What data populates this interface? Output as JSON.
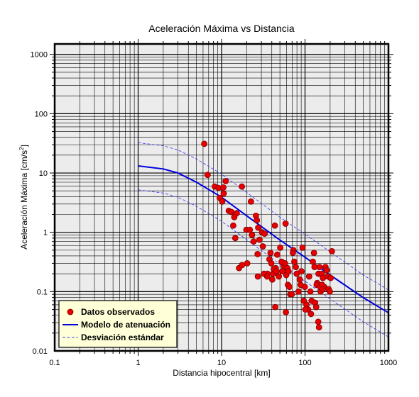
{
  "chart_data": {
    "type": "scatter",
    "title": "Aceleración Máxima vs Distancia",
    "xlabel": "Distancia hipocentral [km]",
    "ylabel": "Aceleración Máxima [cm/s",
    "ylabel_sup": "2",
    "ylabel_suffix": "]",
    "xscale": "log",
    "yscale": "log",
    "xlim": [
      0.1,
      1000
    ],
    "ylim": [
      0.01,
      1500
    ],
    "x_ticks": [
      0.1,
      1,
      10,
      100,
      1000
    ],
    "x_tick_labels": [
      "0.1",
      "1",
      "10",
      "100",
      "1000"
    ],
    "y_ticks": [
      0.01,
      0.1,
      1,
      10,
      100,
      1000
    ],
    "y_tick_labels": [
      "0.01",
      "0.1",
      "1",
      "10",
      "100",
      "1000"
    ],
    "grid": true,
    "legend_position": "bottom-left",
    "colors": {
      "points": "#e80000",
      "model": "#0000dd",
      "std": "#4444ee",
      "legend_bg": "#ffffd8",
      "plot_bg": "#ececec"
    },
    "series": [
      {
        "name": "Datos observados",
        "kind": "points",
        "points": [
          [
            6.2,
            31
          ],
          [
            6.8,
            9.3
          ],
          [
            8.3,
            5.9
          ],
          [
            9.2,
            5.6
          ],
          [
            10.5,
            5.7
          ],
          [
            11.2,
            7.3
          ],
          [
            9.5,
            3.8
          ],
          [
            10.2,
            3.3
          ],
          [
            10.6,
            4.5
          ],
          [
            12.2,
            2.3
          ],
          [
            13.1,
            2.2
          ],
          [
            14.5,
            2.0
          ],
          [
            15.2,
            2.1
          ],
          [
            14.2,
            1.8
          ],
          [
            13.8,
            1.3
          ],
          [
            14.6,
            0.8
          ],
          [
            17.5,
            5.9
          ],
          [
            22.5,
            3.3
          ],
          [
            19.8,
            1.1
          ],
          [
            21.8,
            1.1
          ],
          [
            23.2,
            0.9
          ],
          [
            25.8,
            1.9
          ],
          [
            26.5,
            1.6
          ],
          [
            27.5,
            1.2
          ],
          [
            24.2,
            0.7
          ],
          [
            28.5,
            0.75
          ],
          [
            30.5,
            1.0
          ],
          [
            31.2,
            0.58
          ],
          [
            32.8,
            0.95
          ],
          [
            35.5,
            0.2
          ],
          [
            37.5,
            0.35
          ],
          [
            39.5,
            0.3
          ],
          [
            40.5,
            0.16
          ],
          [
            41.5,
            0.2
          ],
          [
            43.5,
            1.3
          ],
          [
            44.5,
            0.25
          ],
          [
            46.5,
            0.42
          ],
          [
            48.5,
            0.18
          ],
          [
            50.5,
            0.55
          ],
          [
            52.5,
            0.32
          ],
          [
            53.5,
            0.22
          ],
          [
            55.5,
            0.27
          ],
          [
            57.5,
            0.3
          ],
          [
            58.5,
            1.4
          ],
          [
            59.5,
            0.19
          ],
          [
            61.5,
            0.25
          ],
          [
            63.5,
            0.22
          ],
          [
            66.5,
            0.09
          ],
          [
            69.5,
            0.09
          ],
          [
            72.5,
            0.5
          ],
          [
            74.5,
            0.32
          ],
          [
            77.5,
            0.26
          ],
          [
            79.5,
            0.2
          ],
          [
            83.5,
            0.1
          ],
          [
            86.5,
            0.16
          ],
          [
            90.5,
            0.22
          ],
          [
            93.5,
            0.55
          ],
          [
            96.5,
            0.07
          ],
          [
            99.5,
            0.12
          ],
          [
            104,
            0.06
          ],
          [
            109,
            0.05
          ],
          [
            112,
            0.18
          ],
          [
            116,
            0.1
          ],
          [
            120,
            0.07
          ],
          [
            124,
            0.32
          ],
          [
            128,
            0.45
          ],
          [
            132,
            0.065
          ],
          [
            136,
            0.055
          ],
          [
            140,
            0.14
          ],
          [
            145,
            0.2
          ],
          [
            149,
            0.26
          ],
          [
            154,
            0.1
          ],
          [
            159,
            0.2
          ],
          [
            164,
            0.17
          ],
          [
            170,
            0.12
          ],
          [
            176,
            0.26
          ],
          [
            182,
            0.23
          ],
          [
            188,
            0.18
          ],
          [
            192,
            0.11
          ],
          [
            198,
            0.1
          ],
          [
            203,
            0.17
          ],
          [
            210,
            0.48
          ],
          [
            144,
            0.031
          ],
          [
            147,
            0.025
          ],
          [
            59,
            0.045
          ],
          [
            44,
            0.055
          ],
          [
            16.2,
            0.25
          ],
          [
            17.6,
            0.28
          ],
          [
            20.3,
            0.3
          ],
          [
            27.2,
            0.18
          ],
          [
            32.2,
            0.2
          ],
          [
            35.2,
            0.18
          ],
          [
            38.6,
            0.45
          ],
          [
            42.2,
            0.24
          ],
          [
            45.5,
            0.22
          ],
          [
            62.4,
            0.13
          ],
          [
            65.1,
            0.12
          ],
          [
            71.5,
            0.45
          ],
          [
            88.5,
            0.13
          ],
          [
            101,
            0.05
          ],
          [
            118,
            0.042
          ],
          [
            130,
            0.26
          ],
          [
            138,
            0.13
          ],
          [
            152,
            0.12
          ],
          [
            160,
            0.13
          ],
          [
            163,
            0.11
          ],
          [
            27,
            0.43
          ]
        ]
      },
      {
        "name": "Modelo de atenuación",
        "kind": "line",
        "points": [
          [
            1,
            13.2
          ],
          [
            2,
            11.7
          ],
          [
            3,
            10
          ],
          [
            5,
            7
          ],
          [
            10,
            3.9
          ],
          [
            20,
            1.9
          ],
          [
            50,
            0.74
          ],
          [
            100,
            0.38
          ],
          [
            200,
            0.19
          ],
          [
            500,
            0.079
          ],
          [
            1000,
            0.044
          ]
        ]
      },
      {
        "name": "Desviación estándar",
        "kind": "dashed",
        "points": [
          [
            1,
            32.5
          ],
          [
            2,
            28.7
          ],
          [
            3,
            24.5
          ],
          [
            5,
            17.2
          ],
          [
            10,
            9.6
          ],
          [
            20,
            4.7
          ],
          [
            50,
            1.8
          ],
          [
            100,
            0.93
          ],
          [
            200,
            0.47
          ],
          [
            500,
            0.19
          ],
          [
            1000,
            0.107
          ]
        ],
        "points_lower": [
          [
            1,
            5.2
          ],
          [
            2,
            4.6
          ],
          [
            3,
            3.9
          ],
          [
            5,
            2.75
          ],
          [
            10,
            1.53
          ],
          [
            20,
            0.75
          ],
          [
            50,
            0.29
          ],
          [
            100,
            0.15
          ],
          [
            200,
            0.075
          ],
          [
            500,
            0.031
          ],
          [
            1000,
            0.0172
          ]
        ]
      }
    ]
  }
}
